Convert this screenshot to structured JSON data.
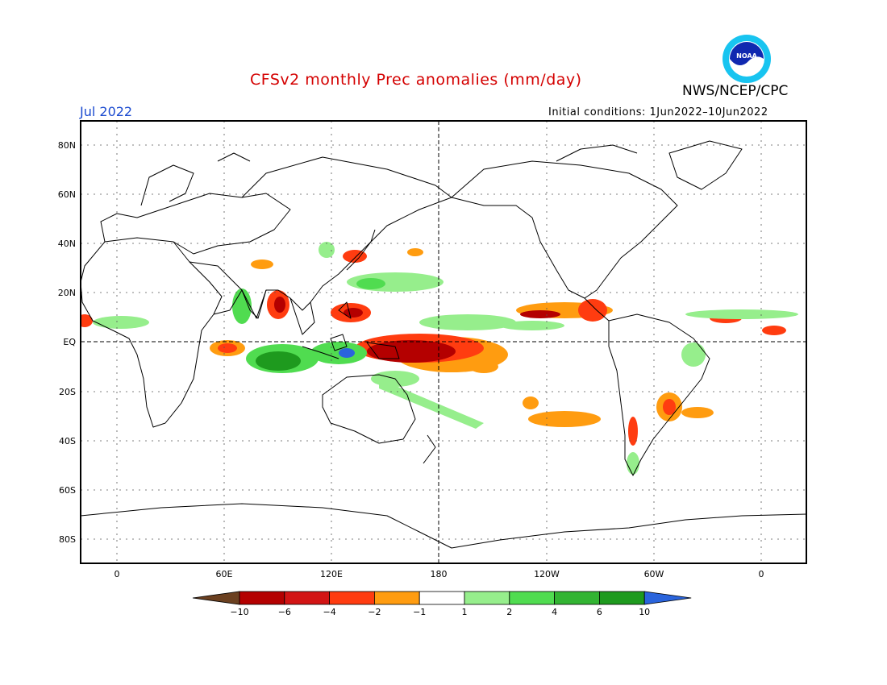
{
  "title": "CFSv2 monthly Prec anomalies (mm/day)",
  "agency": "NWS/NCEP/CPC",
  "logo_text": "NOAA",
  "month": "Jul 2022",
  "initial_conditions": "Initial conditions: 1Jun2022–10Jun2022",
  "map": {
    "lat_ticks": [
      "80N",
      "60N",
      "40N",
      "20N",
      "EQ",
      "20S",
      "40S",
      "60S",
      "80S"
    ],
    "lon_ticks": [
      "0",
      "60E",
      "120E",
      "180",
      "120W",
      "60W",
      "0"
    ],
    "grid": "dotted",
    "reference_lines": [
      "EQ",
      "180"
    ]
  },
  "colorbar": {
    "labels": [
      "−10",
      "−6",
      "−4",
      "−2",
      "−1",
      "1",
      "2",
      "4",
      "6",
      "10"
    ],
    "colors": [
      "#6b4020",
      "#b40000",
      "#d21414",
      "#ff3c10",
      "#ff9c10",
      "#ffffff",
      "#96ee8c",
      "#50dc50",
      "#32b432",
      "#1e9a1e",
      "#2a64dc"
    ]
  }
}
